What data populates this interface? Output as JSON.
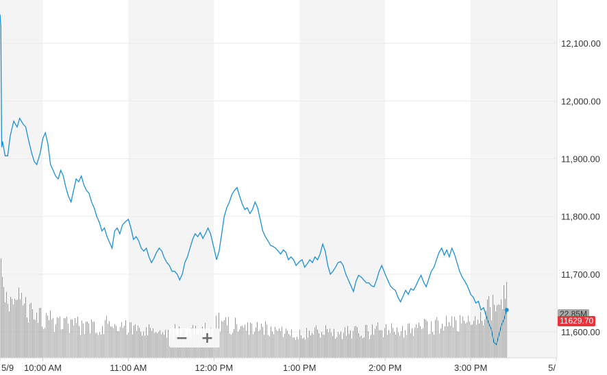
{
  "chart_data": {
    "type": "line",
    "y_ticks": [
      "12,100.00",
      "12,000.00",
      "11,900.00",
      "11,800.00",
      "11,700.00",
      "11,600.00"
    ],
    "y_tick_values": [
      12100,
      12000,
      11900,
      11800,
      11700,
      11600
    ],
    "ylim": [
      11555,
      12175
    ],
    "x_ticks": [
      "5/9",
      "10:00 AM",
      "11:00 AM",
      "12:00 PM",
      "1:00 PM",
      "2:00 PM",
      "3:00 PM",
      "5/"
    ],
    "xlim": [
      9.5,
      16.0
    ],
    "grid": true,
    "shaded_bands_hours": [
      [
        9.5,
        10.0
      ],
      [
        11.0,
        12.0
      ],
      [
        13.0,
        14.0
      ],
      [
        15.0,
        16.0
      ]
    ],
    "price_series": [
      [
        9.5,
        12150
      ],
      [
        9.51,
        12130
      ],
      [
        9.52,
        11920
      ],
      [
        9.53,
        11930
      ],
      [
        9.56,
        11905
      ],
      [
        9.59,
        11905
      ],
      [
        9.62,
        11940
      ],
      [
        9.66,
        11965
      ],
      [
        9.7,
        11955
      ],
      [
        9.73,
        11970
      ],
      [
        9.77,
        11960
      ],
      [
        9.8,
        11955
      ],
      [
        9.83,
        11935
      ],
      [
        9.87,
        11910
      ],
      [
        9.9,
        11895
      ],
      [
        9.93,
        11890
      ],
      [
        9.97,
        11910
      ],
      [
        10.0,
        11935
      ],
      [
        10.03,
        11945
      ],
      [
        10.06,
        11925
      ],
      [
        10.09,
        11890
      ],
      [
        10.12,
        11880
      ],
      [
        10.15,
        11870
      ],
      [
        10.18,
        11865
      ],
      [
        10.21,
        11880
      ],
      [
        10.24,
        11870
      ],
      [
        10.27,
        11850
      ],
      [
        10.3,
        11835
      ],
      [
        10.33,
        11825
      ],
      [
        10.36,
        11845
      ],
      [
        10.39,
        11865
      ],
      [
        10.42,
        11860
      ],
      [
        10.45,
        11870
      ],
      [
        10.48,
        11855
      ],
      [
        10.51,
        11845
      ],
      [
        10.54,
        11840
      ],
      [
        10.57,
        11825
      ],
      [
        10.6,
        11815
      ],
      [
        10.63,
        11800
      ],
      [
        10.66,
        11790
      ],
      [
        10.69,
        11775
      ],
      [
        10.72,
        11780
      ],
      [
        10.75,
        11765
      ],
      [
        10.78,
        11755
      ],
      [
        10.81,
        11745
      ],
      [
        10.84,
        11775
      ],
      [
        10.87,
        11780
      ],
      [
        10.9,
        11770
      ],
      [
        10.93,
        11785
      ],
      [
        10.96,
        11790
      ],
      [
        11.0,
        11795
      ],
      [
        11.03,
        11780
      ],
      [
        11.06,
        11760
      ],
      [
        11.09,
        11765
      ],
      [
        11.12,
        11758
      ],
      [
        11.15,
        11745
      ],
      [
        11.18,
        11740
      ],
      [
        11.21,
        11745
      ],
      [
        11.24,
        11730
      ],
      [
        11.27,
        11720
      ],
      [
        11.3,
        11728
      ],
      [
        11.33,
        11738
      ],
      [
        11.36,
        11745
      ],
      [
        11.39,
        11740
      ],
      [
        11.42,
        11728
      ],
      [
        11.45,
        11720
      ],
      [
        11.48,
        11715
      ],
      [
        11.51,
        11705
      ],
      [
        11.54,
        11705
      ],
      [
        11.57,
        11700
      ],
      [
        11.6,
        11690
      ],
      [
        11.63,
        11700
      ],
      [
        11.66,
        11720
      ],
      [
        11.69,
        11730
      ],
      [
        11.72,
        11745
      ],
      [
        11.75,
        11760
      ],
      [
        11.78,
        11770
      ],
      [
        11.81,
        11765
      ],
      [
        11.84,
        11772
      ],
      [
        11.87,
        11762
      ],
      [
        11.9,
        11770
      ],
      [
        11.93,
        11780
      ],
      [
        11.96,
        11770
      ],
      [
        12.0,
        11745
      ],
      [
        12.03,
        11725
      ],
      [
        12.06,
        11740
      ],
      [
        12.09,
        11770
      ],
      [
        12.12,
        11800
      ],
      [
        12.15,
        11815
      ],
      [
        12.18,
        11825
      ],
      [
        12.21,
        11838
      ],
      [
        12.24,
        11845
      ],
      [
        12.27,
        11850
      ],
      [
        12.3,
        11835
      ],
      [
        12.33,
        11822
      ],
      [
        12.36,
        11812
      ],
      [
        12.39,
        11815
      ],
      [
        12.42,
        11805
      ],
      [
        12.45,
        11812
      ],
      [
        12.48,
        11825
      ],
      [
        12.51,
        11815
      ],
      [
        12.54,
        11795
      ],
      [
        12.57,
        11775
      ],
      [
        12.6,
        11765
      ],
      [
        12.63,
        11758
      ],
      [
        12.66,
        11750
      ],
      [
        12.69,
        11748
      ],
      [
        12.72,
        11745
      ],
      [
        12.75,
        11740
      ],
      [
        12.78,
        11735
      ],
      [
        12.81,
        11742
      ],
      [
        12.84,
        11738
      ],
      [
        12.87,
        11725
      ],
      [
        12.9,
        11730
      ],
      [
        12.93,
        11725
      ],
      [
        12.96,
        11715
      ],
      [
        13.0,
        11722
      ],
      [
        13.03,
        11725
      ],
      [
        13.06,
        11712
      ],
      [
        13.09,
        11718
      ],
      [
        13.12,
        11725
      ],
      [
        13.15,
        11720
      ],
      [
        13.18,
        11730
      ],
      [
        13.21,
        11725
      ],
      [
        13.24,
        11735
      ],
      [
        13.27,
        11752
      ],
      [
        13.3,
        11740
      ],
      [
        13.33,
        11715
      ],
      [
        13.36,
        11700
      ],
      [
        13.39,
        11705
      ],
      [
        13.42,
        11712
      ],
      [
        13.45,
        11720
      ],
      [
        13.48,
        11722
      ],
      [
        13.51,
        11715
      ],
      [
        13.54,
        11700
      ],
      [
        13.57,
        11690
      ],
      [
        13.6,
        11680
      ],
      [
        13.63,
        11670
      ],
      [
        13.66,
        11688
      ],
      [
        13.69,
        11698
      ],
      [
        13.72,
        11695
      ],
      [
        13.75,
        11690
      ],
      [
        13.78,
        11685
      ],
      [
        13.81,
        11685
      ],
      [
        13.84,
        11680
      ],
      [
        13.87,
        11678
      ],
      [
        13.9,
        11690
      ],
      [
        13.93,
        11705
      ],
      [
        13.96,
        11715
      ],
      [
        14.0,
        11700
      ],
      [
        14.03,
        11690
      ],
      [
        14.06,
        11680
      ],
      [
        14.09,
        11675
      ],
      [
        14.12,
        11672
      ],
      [
        14.15,
        11660
      ],
      [
        14.18,
        11652
      ],
      [
        14.21,
        11662
      ],
      [
        14.24,
        11672
      ],
      [
        14.27,
        11665
      ],
      [
        14.3,
        11675
      ],
      [
        14.33,
        11672
      ],
      [
        14.36,
        11680
      ],
      [
        14.39,
        11690
      ],
      [
        14.42,
        11698
      ],
      [
        14.45,
        11686
      ],
      [
        14.48,
        11678
      ],
      [
        14.51,
        11692
      ],
      [
        14.54,
        11705
      ],
      [
        14.57,
        11712
      ],
      [
        14.6,
        11725
      ],
      [
        14.63,
        11738
      ],
      [
        14.66,
        11745
      ],
      [
        14.69,
        11733
      ],
      [
        14.72,
        11742
      ],
      [
        14.75,
        11730
      ],
      [
        14.78,
        11745
      ],
      [
        14.81,
        11735
      ],
      [
        14.84,
        11720
      ],
      [
        14.87,
        11705
      ],
      [
        14.9,
        11695
      ],
      [
        14.93,
        11688
      ],
      [
        14.96,
        11680
      ],
      [
        15.0,
        11665
      ],
      [
        15.03,
        11660
      ],
      [
        15.06,
        11650
      ],
      [
        15.09,
        11653
      ],
      [
        15.12,
        11638
      ],
      [
        15.15,
        11642
      ],
      [
        15.18,
        11628
      ],
      [
        15.21,
        11615
      ],
      [
        15.24,
        11605
      ],
      [
        15.27,
        11582
      ],
      [
        15.3,
        11578
      ],
      [
        15.33,
        11595
      ],
      [
        15.36,
        11612
      ],
      [
        15.39,
        11622
      ],
      [
        15.42,
        11638
      ]
    ],
    "volume_ticks": [
      [
        9.5,
        0.9
      ],
      [
        9.55,
        0.72
      ],
      [
        9.6,
        0.68
      ],
      [
        9.65,
        0.62
      ],
      [
        9.7,
        0.55
      ],
      [
        9.75,
        0.6
      ],
      [
        9.8,
        0.5
      ],
      [
        9.85,
        0.48
      ],
      [
        9.9,
        0.52
      ],
      [
        9.95,
        0.45
      ],
      [
        10.0,
        0.42
      ],
      [
        10.05,
        0.4
      ],
      [
        10.1,
        0.38
      ],
      [
        10.15,
        0.36
      ],
      [
        10.2,
        0.4
      ],
      [
        10.25,
        0.36
      ],
      [
        10.3,
        0.35
      ],
      [
        10.35,
        0.32
      ],
      [
        10.4,
        0.34
      ],
      [
        10.45,
        0.3
      ],
      [
        10.5,
        0.33
      ],
      [
        10.55,
        0.31
      ],
      [
        10.6,
        0.32
      ],
      [
        10.65,
        0.3
      ],
      [
        10.7,
        0.34
      ],
      [
        10.75,
        0.36
      ],
      [
        10.8,
        0.33
      ],
      [
        10.85,
        0.3
      ],
      [
        10.9,
        0.35
      ],
      [
        10.95,
        0.34
      ],
      [
        11.0,
        0.3
      ],
      [
        11.05,
        0.32
      ],
      [
        11.1,
        0.28
      ],
      [
        11.15,
        0.3
      ],
      [
        11.2,
        0.27
      ],
      [
        11.25,
        0.29
      ],
      [
        11.3,
        0.26
      ],
      [
        11.35,
        0.28
      ],
      [
        11.4,
        0.25
      ],
      [
        11.45,
        0.27
      ],
      [
        11.5,
        0.26
      ],
      [
        11.55,
        0.28
      ],
      [
        11.6,
        0.25
      ],
      [
        11.65,
        0.27
      ],
      [
        11.7,
        0.26
      ],
      [
        11.75,
        0.28
      ],
      [
        11.8,
        0.27
      ],
      [
        11.85,
        0.29
      ],
      [
        11.9,
        0.3
      ],
      [
        11.95,
        0.28
      ],
      [
        12.0,
        0.32
      ],
      [
        12.05,
        0.38
      ],
      [
        12.1,
        0.34
      ],
      [
        12.15,
        0.36
      ],
      [
        12.2,
        0.33
      ],
      [
        12.25,
        0.35
      ],
      [
        12.3,
        0.32
      ],
      [
        12.35,
        0.3
      ],
      [
        12.4,
        0.31
      ],
      [
        12.45,
        0.29
      ],
      [
        12.5,
        0.3
      ],
      [
        12.55,
        0.28
      ],
      [
        12.6,
        0.3
      ],
      [
        12.65,
        0.27
      ],
      [
        12.7,
        0.29
      ],
      [
        12.75,
        0.26
      ],
      [
        12.8,
        0.28
      ],
      [
        12.85,
        0.26
      ],
      [
        12.9,
        0.27
      ],
      [
        12.95,
        0.25
      ],
      [
        13.0,
        0.27
      ],
      [
        13.05,
        0.26
      ],
      [
        13.1,
        0.28
      ],
      [
        13.15,
        0.25
      ],
      [
        13.2,
        0.27
      ],
      [
        13.25,
        0.3
      ],
      [
        13.3,
        0.28
      ],
      [
        13.35,
        0.26
      ],
      [
        13.4,
        0.27
      ],
      [
        13.45,
        0.25
      ],
      [
        13.5,
        0.27
      ],
      [
        13.55,
        0.28
      ],
      [
        13.6,
        0.26
      ],
      [
        13.65,
        0.27
      ],
      [
        13.7,
        0.25
      ],
      [
        13.75,
        0.28
      ],
      [
        13.8,
        0.26
      ],
      [
        13.85,
        0.27
      ],
      [
        13.9,
        0.29
      ],
      [
        13.95,
        0.27
      ],
      [
        14.0,
        0.28
      ],
      [
        14.05,
        0.3
      ],
      [
        14.1,
        0.27
      ],
      [
        14.15,
        0.29
      ],
      [
        14.2,
        0.3
      ],
      [
        14.25,
        0.28
      ],
      [
        14.3,
        0.3
      ],
      [
        14.35,
        0.31
      ],
      [
        14.4,
        0.29
      ],
      [
        14.45,
        0.32
      ],
      [
        14.5,
        0.3
      ],
      [
        14.55,
        0.33
      ],
      [
        14.6,
        0.34
      ],
      [
        14.65,
        0.32
      ],
      [
        14.7,
        0.35
      ],
      [
        14.75,
        0.33
      ],
      [
        14.8,
        0.36
      ],
      [
        14.85,
        0.34
      ],
      [
        14.9,
        0.37
      ],
      [
        14.95,
        0.35
      ],
      [
        15.0,
        0.38
      ],
      [
        15.05,
        0.4
      ],
      [
        15.1,
        0.42
      ],
      [
        15.15,
        0.45
      ],
      [
        15.2,
        0.5
      ],
      [
        15.25,
        0.55
      ],
      [
        15.3,
        0.6
      ],
      [
        15.35,
        0.58
      ],
      [
        15.4,
        0.62
      ]
    ],
    "volume_label": "22.85M",
    "price_label": "11629.70",
    "colors": {
      "line": "#1a8fd6",
      "volume_up": "#4caf7d",
      "volume_down": "#e0555f",
      "band": "#f4f4f4",
      "grid": "#ebebeb",
      "price_flag": "#e8323c",
      "volume_flag": "#a8a8a8"
    }
  },
  "zoom": {
    "minus_label": "−",
    "plus_label": "+"
  }
}
